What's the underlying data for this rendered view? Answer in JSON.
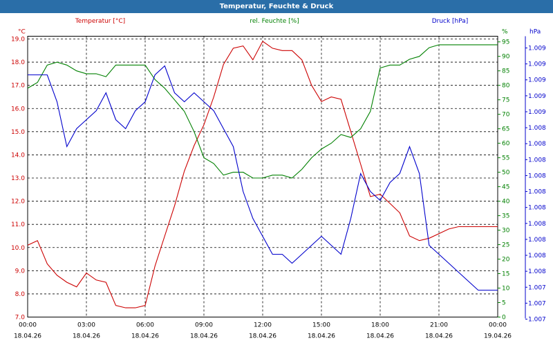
{
  "chart_data": {
    "type": "line",
    "title": "Temperatur, Feuchte & Druck",
    "legend": [
      "Temperatur [°C]",
      "rel. Feuchte [%]",
      "Druck [hPa]"
    ],
    "axes": {
      "temp": {
        "unit": "°C",
        "range": [
          7.0,
          19.0
        ],
        "ticks": [
          "19.0",
          "18.0",
          "17.0",
          "16.0",
          "15.0",
          "14.0",
          "13.0",
          "12.0",
          "11.0",
          "10.0",
          "9.0",
          "8.0",
          "7.0"
        ],
        "color": "#cc0000"
      },
      "hum": {
        "unit": "%",
        "range": [
          0,
          96
        ],
        "ticks": [
          "95",
          "90",
          "85",
          "80",
          "75",
          "70",
          "65",
          "60",
          "55",
          "50",
          "45",
          "40",
          "35",
          "30",
          "25",
          "20",
          "15",
          "10",
          "5",
          "0"
        ],
        "color": "#008000"
      },
      "press": {
        "unit": "hPa",
        "ticks": [
          "1.009",
          "1.009",
          "1.009",
          "1.009",
          "1.009",
          "1.008",
          "1.008",
          "1.008",
          "1.008",
          "1.008",
          "1.008",
          "1.008",
          "1.008",
          "1.008",
          "1.008",
          "1.007",
          "1.007",
          "1.007"
        ],
        "color": "#0000cc"
      }
    },
    "x_ticks": [
      {
        "time": "00:00",
        "date": "18.04.26"
      },
      {
        "time": "03:00",
        "date": "18.04.26"
      },
      {
        "time": "06:00",
        "date": "18.04.26"
      },
      {
        "time": "09:00",
        "date": "18.04.26"
      },
      {
        "time": "12:00",
        "date": "18.04.26"
      },
      {
        "time": "15:00",
        "date": "18.04.26"
      },
      {
        "time": "18:00",
        "date": "18.04.26"
      },
      {
        "time": "21:00",
        "date": "18.04.26"
      },
      {
        "time": "00:00",
        "date": "19.04.26"
      }
    ],
    "x_hours": [
      0,
      0.5,
      1,
      1.5,
      2,
      2.5,
      3,
      3.5,
      4,
      4.5,
      5,
      5.5,
      6,
      6.5,
      7,
      7.5,
      8,
      8.5,
      9,
      9.5,
      10,
      10.5,
      11,
      11.5,
      12,
      12.5,
      13,
      13.5,
      14,
      14.5,
      15,
      15.5,
      16,
      16.5,
      17,
      17.5,
      18,
      18.5,
      19,
      19.5,
      20,
      20.5,
      21,
      21.5,
      22,
      22.5,
      23,
      23.5,
      24
    ],
    "series": [
      {
        "name": "Temperatur [°C]",
        "axis": "temp",
        "color": "#cc0000",
        "values": [
          10.1,
          10.3,
          9.3,
          8.8,
          8.5,
          8.3,
          8.9,
          8.6,
          8.5,
          7.5,
          7.4,
          7.4,
          7.5,
          9.2,
          10.5,
          11.8,
          13.3,
          14.4,
          15.3,
          16.5,
          17.9,
          18.6,
          18.7,
          18.1,
          18.9,
          18.6,
          18.5,
          18.5,
          18.1,
          17.0,
          16.3,
          16.5,
          16.4,
          15.0,
          13.6,
          12.2,
          12.3,
          11.9,
          11.5,
          10.5,
          10.3,
          10.4,
          10.6,
          10.8,
          10.9,
          10.9,
          10.9,
          10.9,
          10.9
        ]
      },
      {
        "name": "rel. Feuchte [%]",
        "axis": "hum",
        "color": "#008000",
        "values": [
          79,
          81,
          87,
          88,
          87,
          85,
          84,
          84,
          83,
          87,
          87,
          87,
          87,
          82,
          79,
          75,
          71,
          64,
          55,
          53,
          49,
          50,
          50,
          48,
          48,
          49,
          49,
          48,
          51,
          55,
          58,
          60,
          63,
          62,
          65,
          71,
          86,
          87,
          87,
          89,
          90,
          93,
          94,
          94,
          94,
          94,
          94,
          94,
          94
        ]
      },
      {
        "name": "Druck [hPa]",
        "axis": "press",
        "color": "#0000cc",
        "values": [
          1.0093,
          1.0093,
          1.0093,
          1.009,
          1.0085,
          1.0087,
          1.0088,
          1.0089,
          1.0091,
          1.0088,
          1.0087,
          1.0089,
          1.009,
          1.0093,
          1.0094,
          1.0091,
          1.009,
          1.0091,
          1.009,
          1.0089,
          1.0087,
          1.0085,
          1.008,
          1.0077,
          1.0075,
          1.0073,
          1.0073,
          1.0072,
          1.0073,
          1.0074,
          1.0075,
          1.0074,
          1.0073,
          1.0077,
          1.0082,
          1.008,
          1.0079,
          1.0081,
          1.0082,
          1.0085,
          1.0082,
          1.0074,
          1.0073,
          1.0072,
          1.0071,
          1.007,
          1.0069,
          1.0069,
          1.0069
        ]
      }
    ]
  }
}
